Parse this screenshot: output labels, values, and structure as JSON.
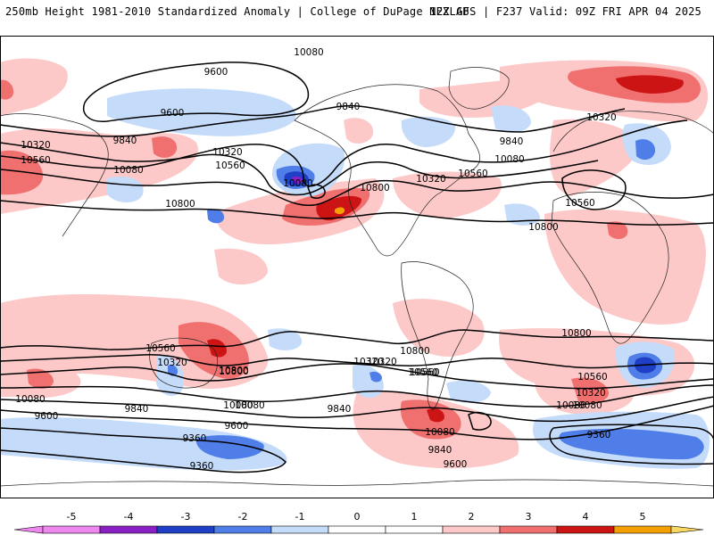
{
  "header": {
    "left": "250mb Height 1981-2010 Standardized Anomaly | College of DuPage NEXLAB",
    "right": "12Z GFS | F237 Valid: 09Z FRI APR 04 2025"
  },
  "colors": {
    "neg5": "#ee88ee",
    "neg4": "#8a1fc4",
    "neg3": "#1f3fc6",
    "neg2": "#4f7ee8",
    "neg1": "#c4dcfa",
    "zero": "#ffffff",
    "pos1": "#fcc8c8",
    "pos2": "#f07070",
    "pos3": "#cc1414",
    "pos4": "#f4a000",
    "pos5": "#f8d860"
  },
  "colorbar": {
    "labels": [
      "-5",
      "-4",
      "-3",
      "-2",
      "-1",
      "0",
      "1",
      "2",
      "3",
      "4",
      "5"
    ]
  },
  "contour_labels": [
    "9600",
    "9600",
    "9840",
    "10320",
    "10560",
    "10080",
    "10320",
    "10560",
    "10080",
    "10800",
    "9840",
    "10800",
    "10320",
    "10560",
    "9840",
    "10320",
    "10080",
    "10560",
    "10800",
    "10800",
    "10560",
    "10320",
    "10800",
    "10080",
    "9840",
    "9600",
    "10080",
    "10320",
    "10560",
    "10800",
    "9840",
    "10080",
    "9840",
    "10080",
    "10320",
    "10560",
    "10080",
    "9600",
    "9360",
    "9360",
    "9360",
    "9600",
    "10560",
    "10320",
    "10080",
    "10800",
    "10080"
  ]
}
